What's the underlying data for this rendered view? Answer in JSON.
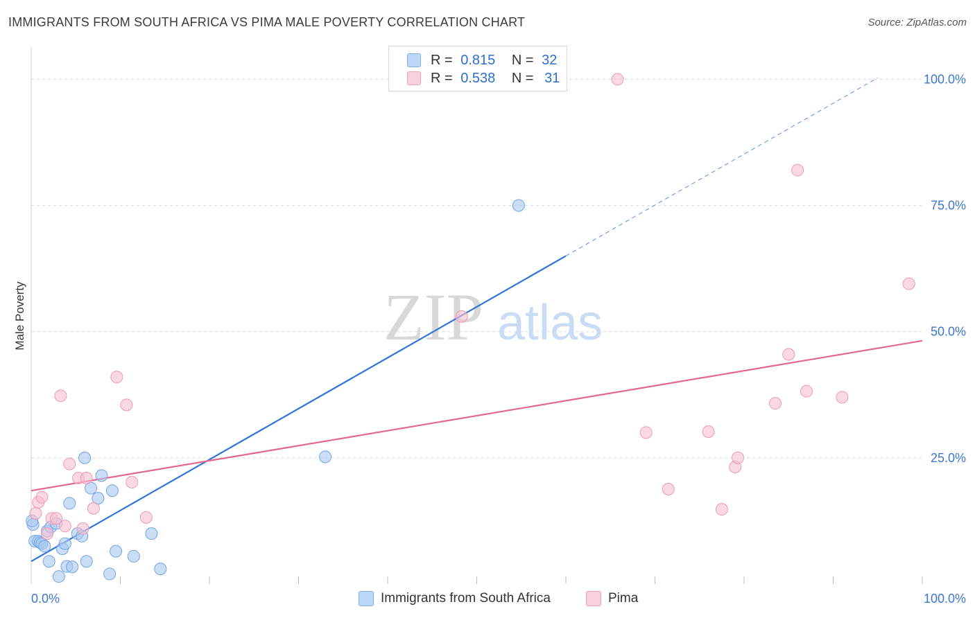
{
  "header": {
    "title": "IMMIGRANTS FROM SOUTH AFRICA VS PIMA MALE POVERTY CORRELATION CHART",
    "source": "Source: ZipAtlas.com"
  },
  "legend_top": {
    "rows": [
      {
        "r_label": "R =",
        "r_value": "0.815",
        "n_label": "N =",
        "n_value": "32"
      },
      {
        "r_label": "R =",
        "r_value": "0.538",
        "n_label": "N =",
        "n_value": "31"
      }
    ]
  },
  "legend_bottom": {
    "items": [
      "Immigrants from South Africa",
      "Pima"
    ]
  },
  "watermark": {
    "part1": "ZIP",
    "part2": "atlas"
  },
  "colors": {
    "blue_fill": "#a8c8f0",
    "blue_stroke": "#6fa3e6",
    "blue_line": "#2d74d6",
    "pink_fill": "#f7bfd0",
    "pink_stroke": "#ec9ab4",
    "pink_line": "#e2678f",
    "axis_label": "#3b77cc",
    "grid": "#d9d9d9"
  },
  "chart_data": {
    "type": "scatter",
    "title": "IMMIGRANTS FROM SOUTH AFRICA VS PIMA MALE POVERTY CORRELATION CHART",
    "xlabel": "",
    "ylabel": "Male Poverty",
    "xlim": [
      0,
      100
    ],
    "ylim": [
      0,
      105
    ],
    "x_tick_labels": [
      "0.0%",
      "100.0%"
    ],
    "y_ticks": [
      25,
      50,
      75,
      100
    ],
    "y_tick_labels": [
      "25.0%",
      "50.0%",
      "75.0%",
      "100.0%"
    ],
    "grid": true,
    "legend": "top-center",
    "series": [
      {
        "name": "Immigrants from South Africa",
        "R": 0.815,
        "N": 32,
        "points": [
          [
            0.2,
            11.8
          ],
          [
            0.4,
            8.5
          ],
          [
            0.8,
            8.5
          ],
          [
            1.0,
            8.2
          ],
          [
            1.2,
            8.0
          ],
          [
            1.5,
            7.5
          ],
          [
            1.8,
            10.5
          ],
          [
            2.0,
            4.5
          ],
          [
            2.2,
            11.3
          ],
          [
            2.8,
            12.0
          ],
          [
            3.1,
            1.5
          ],
          [
            3.5,
            7.0
          ],
          [
            3.8,
            8.0
          ],
          [
            4.0,
            3.5
          ],
          [
            4.3,
            16.0
          ],
          [
            4.6,
            3.4
          ],
          [
            5.2,
            10.0
          ],
          [
            5.7,
            9.5
          ],
          [
            6.0,
            25.0
          ],
          [
            6.2,
            4.5
          ],
          [
            6.7,
            19.0
          ],
          [
            7.5,
            17.0
          ],
          [
            7.9,
            21.5
          ],
          [
            8.8,
            2.0
          ],
          [
            9.1,
            18.5
          ],
          [
            9.5,
            6.5
          ],
          [
            11.5,
            5.5
          ],
          [
            13.5,
            10.0
          ],
          [
            14.5,
            3.0
          ],
          [
            33.0,
            25.2
          ],
          [
            54.7,
            75.0
          ],
          [
            0.1,
            12.5
          ]
        ],
        "trend": {
          "x": [
            0,
            60
          ],
          "y": [
            4.5,
            65.0
          ],
          "dashed_to": [
            95,
            100
          ]
        }
      },
      {
        "name": "Pima",
        "R": 0.538,
        "N": 31,
        "points": [
          [
            0.5,
            14.0
          ],
          [
            0.8,
            16.2
          ],
          [
            1.2,
            17.2
          ],
          [
            1.8,
            10.0
          ],
          [
            2.3,
            13.0
          ],
          [
            2.8,
            13.0
          ],
          [
            3.3,
            37.3
          ],
          [
            3.8,
            11.5
          ],
          [
            4.3,
            23.8
          ],
          [
            5.3,
            21.0
          ],
          [
            5.8,
            11.0
          ],
          [
            6.2,
            21.0
          ],
          [
            7.0,
            15.0
          ],
          [
            9.6,
            41.0
          ],
          [
            10.7,
            35.5
          ],
          [
            11.3,
            20.2
          ],
          [
            12.9,
            13.2
          ],
          [
            48.3,
            53.0
          ],
          [
            65.8,
            100.0
          ],
          [
            69.0,
            30.0
          ],
          [
            71.5,
            18.8
          ],
          [
            76.0,
            30.2
          ],
          [
            77.5,
            14.8
          ],
          [
            79.0,
            23.2
          ],
          [
            79.3,
            25.0
          ],
          [
            83.5,
            35.8
          ],
          [
            85.0,
            45.5
          ],
          [
            86.0,
            82.0
          ],
          [
            87.0,
            38.2
          ],
          [
            91.0,
            37.0
          ],
          [
            98.5,
            59.5
          ]
        ],
        "trend": {
          "x": [
            0,
            100
          ],
          "y": [
            18.5,
            48.2
          ]
        }
      }
    ]
  }
}
